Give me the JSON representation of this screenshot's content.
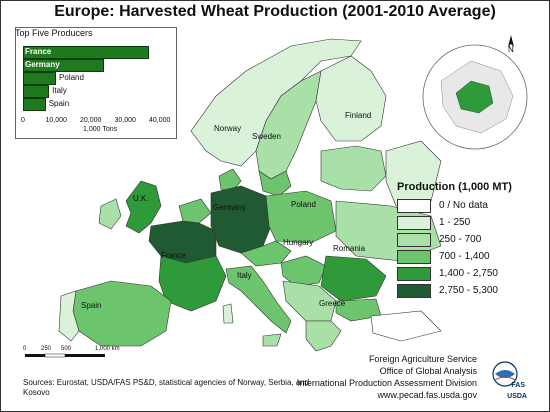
{
  "title": "Europe: Harvested Wheat Production (2001-2010 Average)",
  "inset_chart": {
    "title": "Top Five Producers",
    "unit": "1,000 Tons",
    "axis_ticks": [
      "0",
      "10,000",
      "20,000",
      "30,000",
      "40,000"
    ],
    "colors": {
      "bar": "#1f7a1f"
    }
  },
  "chart_data": {
    "type": "bar",
    "title": "Top Five Producers",
    "categories": [
      "France",
      "Germany",
      "Poland",
      "Italy",
      "Spain"
    ],
    "values": [
      36000,
      23000,
      9000,
      7000,
      6000
    ],
    "xlabel": "1,000 Tons",
    "xlim": [
      0,
      40000
    ],
    "orientation": "horizontal"
  },
  "legend": {
    "title": "Production (1,000 MT)",
    "items": [
      {
        "label": "0 / No data",
        "color": "#ffffff"
      },
      {
        "label": "1 - 250",
        "color": "#d9f2d9"
      },
      {
        "label": "250 - 700",
        "color": "#a8e0a8"
      },
      {
        "label": "700 - 1,400",
        "color": "#6cc46c"
      },
      {
        "label": "1,400 - 2,750",
        "color": "#2f9a3a"
      },
      {
        "label": "2,750 - 5,300",
        "color": "#1f5a32"
      }
    ]
  },
  "country_labels": [
    "Finland",
    "Norway",
    "Sweden",
    "U.K.",
    "Germany",
    "Poland",
    "France",
    "Hungary",
    "Romania",
    "Italy",
    "Spain",
    "Greece"
  ],
  "north_arrow": "N",
  "scale": {
    "ticks": [
      "0",
      "250",
      "500",
      "1,000 km"
    ]
  },
  "credits": {
    "line1": "Foreign Agriculture Service",
    "line2": "Office of Global Analysis",
    "line3": "International Production Assessment Division",
    "line4": "www.pecad.fas.usda.gov"
  },
  "sources": "Sources: Eurostat, USDA/FAS PS&D, statistical agencies of Norway, Serbia, and Kosovo",
  "logo": {
    "text_top": "FAS",
    "text_bottom": "USDA"
  },
  "icons": [
    "north-arrow-icon",
    "globe-inset-icon",
    "usda-logo-icon"
  ]
}
